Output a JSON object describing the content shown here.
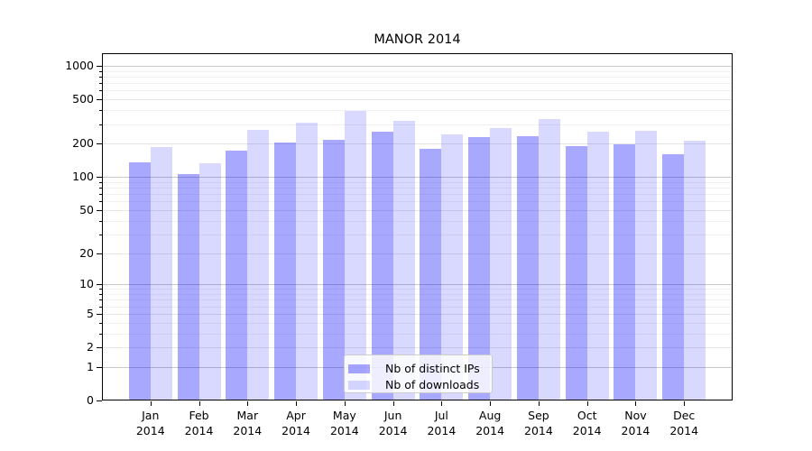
{
  "title": "MANOR 2014",
  "legend": {
    "items": [
      {
        "label": "Nb of distinct IPs"
      },
      {
        "label": "Nb of downloads"
      }
    ]
  },
  "chart_data": {
    "type": "bar",
    "title": "MANOR 2014",
    "categories": [
      "Jan 2014",
      "Feb 2014",
      "Mar 2014",
      "Apr 2014",
      "May 2014",
      "Jun 2014",
      "Jul 2014",
      "Aug 2014",
      "Sep 2014",
      "Oct 2014",
      "Nov 2014",
      "Dec 2014"
    ],
    "x_tick_month": [
      "Jan",
      "Feb",
      "Mar",
      "Apr",
      "May",
      "Jun",
      "Jul",
      "Aug",
      "Sep",
      "Oct",
      "Nov",
      "Dec"
    ],
    "x_tick_year": "2014",
    "series": [
      {
        "name": "Nb of distinct IPs",
        "color": "rgba(0,0,255,0.34)",
        "values": [
          135,
          107,
          172,
          206,
          218,
          254,
          179,
          230,
          235,
          190,
          197,
          162
        ]
      },
      {
        "name": "Nb of downloads",
        "color": "rgba(0,0,255,0.15)",
        "values": [
          185,
          133,
          264,
          309,
          395,
          321,
          243,
          275,
          330,
          255,
          262,
          211
        ]
      }
    ],
    "yscale": "log1p",
    "ylim": [
      0,
      1300
    ],
    "y_major_ticks": [
      0,
      1,
      2,
      5,
      10,
      20,
      50,
      100,
      200,
      500,
      1000
    ],
    "y_minor_ticks": [
      3,
      4,
      6,
      7,
      8,
      9,
      30,
      40,
      60,
      70,
      80,
      90,
      300,
      400,
      600,
      700,
      800,
      900
    ],
    "grid": true,
    "grid_colors": {
      "power10": "#c9c9c9",
      "major": "#e5e5e5",
      "minor": "#f1f1f1"
    },
    "legend_position": "lower center",
    "xlabel": "",
    "ylabel": ""
  }
}
